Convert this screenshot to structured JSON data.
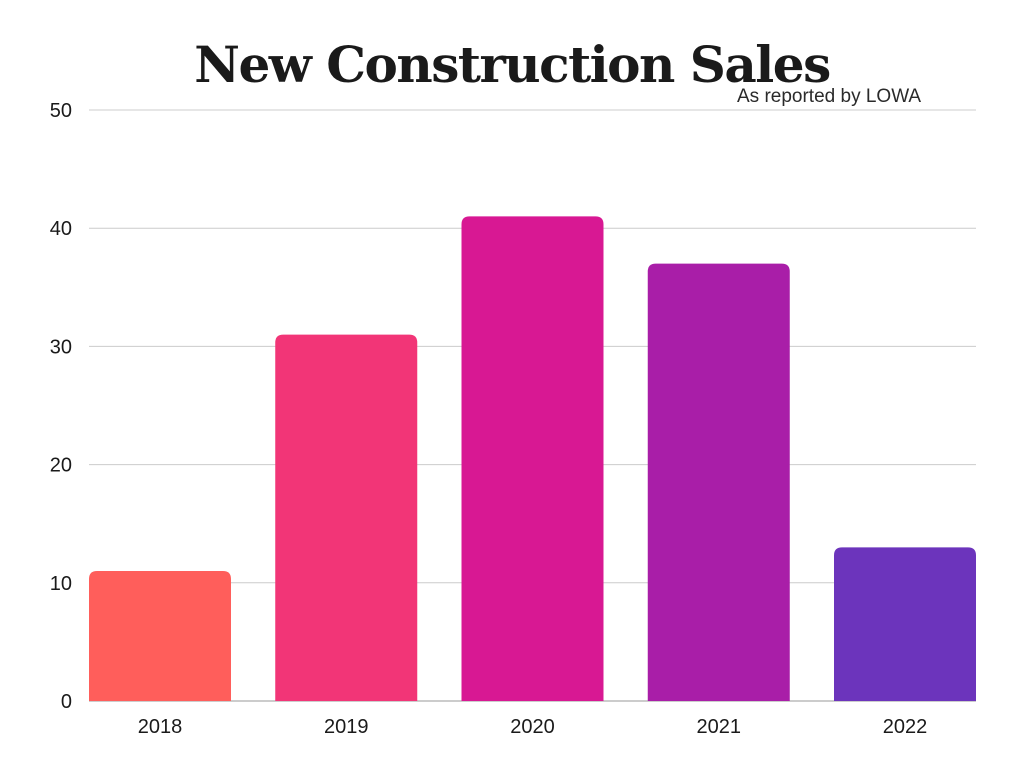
{
  "chart_data": {
    "type": "bar",
    "title": "New Construction Sales",
    "subtitle": "As reported by LOWA",
    "categories": [
      "2018",
      "2019",
      "2020",
      "2021",
      "2022"
    ],
    "values": [
      11,
      31,
      41,
      37,
      13
    ],
    "colors": [
      "#ff5e5b",
      "#f23577",
      "#d81893",
      "#a91ea8",
      "#6c34bc"
    ],
    "ylim": [
      0,
      50
    ],
    "yticks": [
      0,
      10,
      20,
      30,
      40,
      50
    ],
    "grid": true,
    "grid_color": "#cccccc",
    "xlabel": "",
    "ylabel": ""
  }
}
